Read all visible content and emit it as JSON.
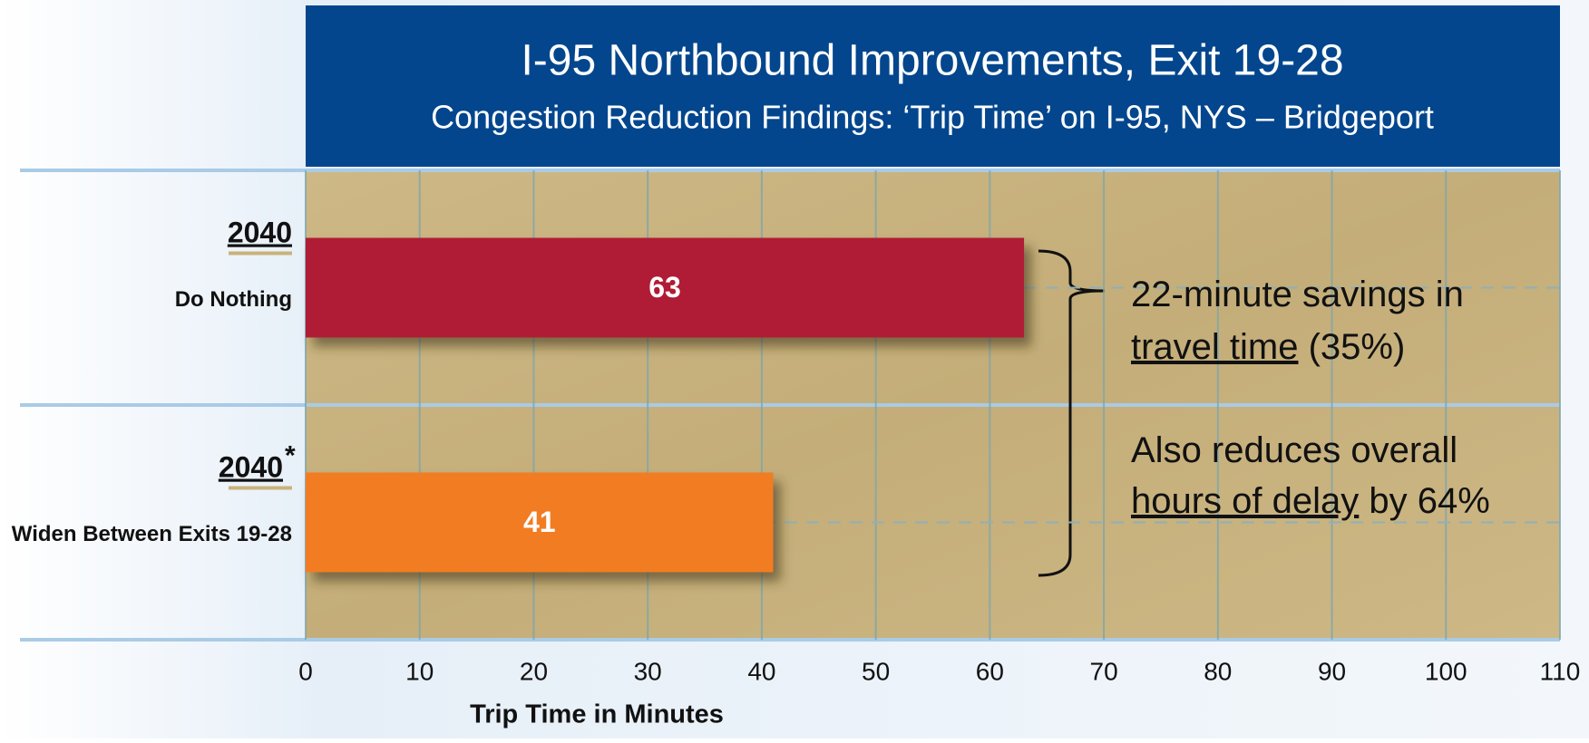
{
  "chart_data": {
    "type": "bar",
    "orientation": "horizontal",
    "title": "I-95 Northbound Improvements, Exit 19-28",
    "subtitle": "Congestion Reduction Findings: ‘Trip Time’ on I-95, NYS – Bridgeport",
    "categories": [
      {
        "year": "2040",
        "label": "Do Nothing"
      },
      {
        "year": "2040",
        "note": "*",
        "label": "Widen Between Exits 19-28"
      }
    ],
    "values": [
      63,
      41
    ],
    "colors": [
      "#b01c34",
      "#f27c22"
    ],
    "xlim": [
      0,
      110
    ],
    "xticks": [
      0,
      10,
      20,
      30,
      40,
      50,
      60,
      70,
      80,
      90,
      100,
      110
    ],
    "xlabel": "Trip Time in Minutes",
    "grid": true,
    "annotations": [
      [
        [
          {
            "text": "22-minute savings in"
          }
        ],
        [
          {
            "text": "travel time",
            "underline": true
          },
          {
            "text": " (35%)"
          }
        ]
      ],
      [
        [
          {
            "text": "Also reduces overall"
          }
        ],
        [
          {
            "text": "hours of delay",
            "underline": true
          },
          {
            "text": " by 64%"
          }
        ]
      ]
    ]
  }
}
